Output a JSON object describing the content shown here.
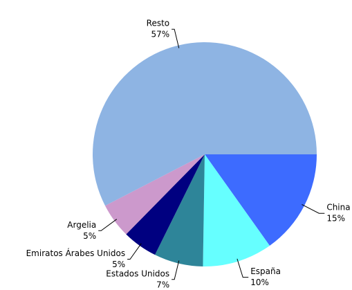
{
  "chart_data": {
    "type": "pie",
    "categories": [
      "China",
      "España",
      "Estados Unidos",
      "Emiratos Árabes Unidos",
      "Argelia",
      "Resto"
    ],
    "values": [
      15,
      10,
      7,
      5,
      5,
      57
    ],
    "value_labels": [
      "15%",
      "10%",
      "7%",
      "5%",
      "5%",
      "57%"
    ],
    "colors": [
      "#3d6bff",
      "#66ffff",
      "#2e8599",
      "#000080",
      "#cc99cc",
      "#8eb4e3"
    ]
  }
}
